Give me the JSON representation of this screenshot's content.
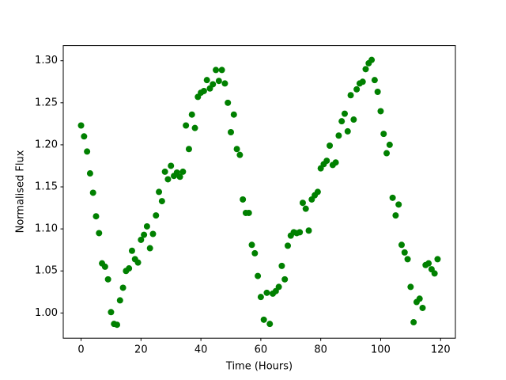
{
  "chart_data": {
    "type": "scatter",
    "xlabel": "Time (Hours)",
    "ylabel": "Normalised Flux",
    "series": [
      {
        "color": "#008000",
        "x": [
          0,
          1,
          2,
          3,
          4,
          5,
          6,
          7,
          8,
          9,
          10,
          11,
          12,
          13,
          14,
          15,
          16,
          17,
          18,
          19,
          20,
          21,
          22,
          23,
          24,
          25,
          26,
          27,
          28,
          29,
          30,
          31,
          32,
          33,
          34,
          35,
          36,
          37,
          38,
          39,
          40,
          41,
          42,
          43,
          44,
          45,
          46,
          47,
          48,
          49,
          50,
          51,
          52,
          53,
          54,
          55,
          56,
          57,
          58,
          59,
          60,
          61,
          62,
          63,
          64,
          65,
          66,
          67,
          68,
          69,
          70,
          71,
          72,
          73,
          74,
          75,
          76,
          77,
          78,
          79,
          80,
          81,
          82,
          83,
          84,
          85,
          86,
          87,
          88,
          89,
          90,
          91,
          92,
          93,
          94,
          95,
          96,
          97,
          98,
          99,
          100,
          101,
          102,
          103,
          104,
          105,
          106,
          107,
          108,
          109,
          110,
          111,
          112,
          113,
          114,
          115,
          116,
          117,
          118,
          119
        ],
        "values": [
          1.223,
          1.21,
          1.192,
          1.166,
          1.143,
          1.115,
          1.095,
          1.059,
          1.055,
          1.04,
          1.001,
          0.987,
          0.986,
          1.015,
          1.03,
          1.05,
          1.053,
          1.074,
          1.064,
          1.06,
          1.087,
          1.093,
          1.103,
          1.077,
          1.094,
          1.116,
          1.144,
          1.133,
          1.168,
          1.159,
          1.175,
          1.163,
          1.167,
          1.162,
          1.168,
          1.223,
          1.195,
          1.236,
          1.22,
          1.257,
          1.262,
          1.264,
          1.277,
          1.267,
          1.272,
          1.289,
          1.276,
          1.289,
          1.273,
          1.25,
          1.215,
          1.236,
          1.195,
          1.188,
          1.135,
          1.119,
          1.119,
          1.081,
          1.071,
          1.044,
          1.019,
          0.992,
          1.024,
          0.987,
          1.023,
          1.026,
          1.031,
          1.056,
          1.04,
          1.08,
          1.092,
          1.096,
          1.095,
          1.096,
          1.131,
          1.124,
          1.098,
          1.135,
          1.14,
          1.144,
          1.172,
          1.177,
          1.181,
          1.199,
          1.176,
          1.179,
          1.211,
          1.228,
          1.237,
          1.216,
          1.259,
          1.23,
          1.266,
          1.273,
          1.275,
          1.29,
          1.297,
          1.301,
          1.277,
          1.263,
          1.24,
          1.213,
          1.19,
          1.2,
          1.137,
          1.116,
          1.129,
          1.081,
          1.072,
          1.064,
          1.031,
          0.989,
          1.013,
          1.017,
          1.006,
          1.057,
          1.059,
          1.052,
          1.047,
          1.064
        ]
      }
    ],
    "xlim": [
      -5.95,
      124.95
    ],
    "xticks": [
      0,
      20,
      40,
      60,
      80,
      100,
      120
    ],
    "ylim": [
      0.97,
      1.318
    ],
    "yticks": [
      {
        "value": 1.0,
        "label": "1.00"
      },
      {
        "value": 1.05,
        "label": "1.05"
      },
      {
        "value": 1.1,
        "label": "1.10"
      },
      {
        "value": 1.15,
        "label": "1.15"
      },
      {
        "value": 1.2,
        "label": "1.20"
      },
      {
        "value": 1.25,
        "label": "1.25"
      },
      {
        "value": 1.3,
        "label": "1.30"
      }
    ],
    "grid": false
  }
}
